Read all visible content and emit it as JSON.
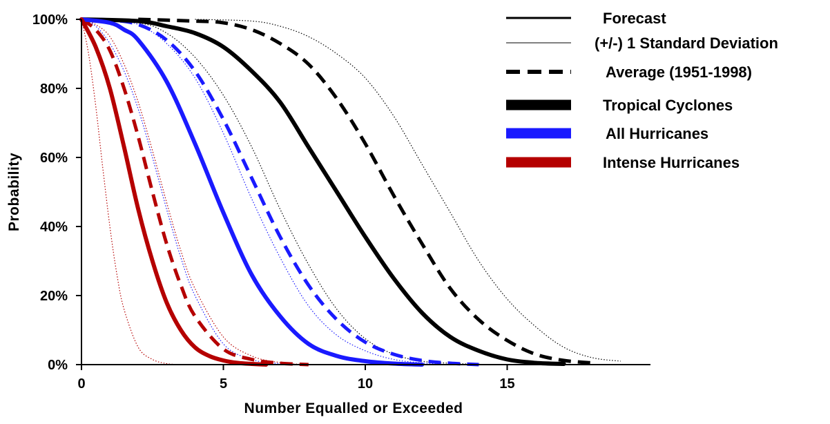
{
  "chart_data": {
    "type": "line",
    "xlabel": "Number Equalled or Exceeded",
    "ylabel": "Probability",
    "xlim": [
      0,
      20
    ],
    "ylim": [
      0,
      100
    ],
    "x_ticks": [
      "0",
      "5",
      "10",
      "15"
    ],
    "y_ticks": [
      "0%",
      "20%",
      "40%",
      "60%",
      "80%",
      "100%"
    ],
    "grid": false,
    "legend_position": "top-right",
    "legend": [
      {
        "label": "Forecast",
        "style": "solid-thin"
      },
      {
        "label": "(+/-) 1 Standard Deviation",
        "style": "hairline"
      },
      {
        "label": "Average (1951-1998)",
        "style": "dashed"
      },
      {
        "label": "Tropical Cyclones",
        "style": "thick",
        "color": "#000000"
      },
      {
        "label": "All Hurricanes",
        "style": "thick",
        "color": "#1a1aff"
      },
      {
        "label": "Intense Hurricanes",
        "style": "thick",
        "color": "#b50000"
      }
    ],
    "colors": {
      "tropical_cyclones": "#000000",
      "all_hurricanes": "#1a1aff",
      "intense_hurricanes": "#b50000"
    },
    "series": [
      {
        "group": "Tropical Cyclones",
        "kind": "Forecast",
        "color": "#000000",
        "style": "solid",
        "x": [
          0,
          2,
          3,
          4,
          5,
          6,
          7,
          8,
          9,
          10,
          11,
          12,
          13,
          14,
          15,
          16,
          17
        ],
        "y": [
          100,
          99.5,
          98,
          96,
          92,
          85,
          76,
          63,
          50,
          37,
          25,
          15,
          8,
          4,
          1.5,
          0.5,
          0.2
        ]
      },
      {
        "group": "Tropical Cyclones",
        "kind": "Average (1951-1998)",
        "color": "#000000",
        "style": "dashed",
        "x": [
          2,
          4,
          5,
          6,
          7,
          8,
          9,
          10,
          11,
          12,
          13,
          14,
          15,
          16,
          17,
          18
        ],
        "y": [
          100,
          99.5,
          99,
          97,
          93,
          87,
          77,
          64,
          49,
          35,
          22,
          13,
          7,
          3,
          1.2,
          0.5
        ]
      },
      {
        "group": "Tropical Cyclones",
        "kind": "+1 Standard Deviation",
        "color": "#000000",
        "style": "dotted",
        "x": [
          4,
          6,
          7,
          8,
          9,
          10,
          11,
          12,
          13,
          14,
          15,
          16,
          17,
          18,
          19
        ],
        "y": [
          100,
          99.5,
          98,
          95,
          90,
          83,
          72,
          58,
          44,
          30,
          19,
          11,
          5,
          2,
          1
        ]
      },
      {
        "group": "Tropical Cyclones",
        "kind": "-1 Standard Deviation",
        "color": "#000000",
        "style": "dotted",
        "x": [
          0,
          2,
          3,
          4,
          5,
          6,
          7,
          8,
          9,
          10,
          11,
          12,
          13,
          14,
          15
        ],
        "y": [
          100,
          99,
          96,
          89,
          78,
          63,
          45,
          29,
          16,
          7.5,
          3,
          1,
          0.4,
          0.1,
          0
        ]
      },
      {
        "group": "All Hurricanes",
        "kind": "Forecast",
        "color": "#1a1aff",
        "style": "solid",
        "x": [
          0,
          1,
          1.5,
          2,
          3,
          4,
          5,
          6,
          7,
          8,
          9,
          10,
          11,
          12
        ],
        "y": [
          100,
          99,
          97,
          94,
          82,
          64,
          44,
          26,
          14,
          6,
          2.5,
          1,
          0.3,
          0
        ]
      },
      {
        "group": "All Hurricanes",
        "kind": "Average (1951-1998)",
        "color": "#1a1aff",
        "style": "dashed",
        "x": [
          0,
          1,
          2,
          3,
          4,
          5,
          6,
          7,
          8,
          9,
          10,
          11,
          12,
          13,
          14
        ],
        "y": [
          100,
          99.8,
          98.5,
          94,
          85,
          71,
          54,
          37,
          23,
          13,
          6.5,
          3,
          1.2,
          0.4,
          0
        ]
      },
      {
        "group": "All Hurricanes",
        "kind": "+1 Standard Deviation",
        "color": "#1a1aff",
        "style": "dotted",
        "x": [
          0,
          1,
          2,
          3,
          4,
          5,
          6,
          7,
          8,
          9,
          10,
          11,
          12,
          13
        ],
        "y": [
          100,
          99.8,
          98.5,
          93,
          83,
          67,
          48,
          31,
          17,
          8.5,
          4,
          1.5,
          0.5,
          0
        ]
      },
      {
        "group": "All Hurricanes",
        "kind": "-1 Standard Deviation",
        "color": "#1a1aff",
        "style": "dotted",
        "x": [
          0,
          0.5,
          1,
          1.5,
          2,
          2.5,
          3,
          3.5,
          4,
          5,
          6,
          7,
          8
        ],
        "y": [
          100,
          98,
          93,
          85,
          74,
          60,
          45,
          31,
          20,
          6,
          1.5,
          0.3,
          0
        ]
      },
      {
        "group": "Intense Hurricanes",
        "kind": "Forecast",
        "color": "#b50000",
        "style": "solid",
        "x": [
          0,
          0.5,
          1,
          1.5,
          2,
          2.5,
          3,
          3.5,
          4,
          4.5,
          5,
          5.5,
          6,
          6.5
        ],
        "y": [
          100,
          92,
          80,
          63,
          45,
          30,
          18,
          10,
          5,
          2.5,
          1.2,
          0.5,
          0.2,
          0
        ]
      },
      {
        "group": "Intense Hurricanes",
        "kind": "Average (1951-1998)",
        "color": "#b50000",
        "style": "dashed",
        "x": [
          0,
          0.5,
          1,
          1.5,
          2,
          2.5,
          3,
          3.5,
          4,
          5,
          6,
          7,
          8
        ],
        "y": [
          100,
          97,
          91,
          80,
          66,
          50,
          35,
          23,
          14,
          4.5,
          1.5,
          0.4,
          0
        ]
      },
      {
        "group": "Intense Hurricanes",
        "kind": "+1 Standard Deviation",
        "color": "#b50000",
        "style": "dotted",
        "x": [
          0,
          0.5,
          1,
          1.5,
          2,
          2.5,
          3,
          3.5,
          4,
          5,
          6,
          7,
          8
        ],
        "y": [
          100,
          98.5,
          95,
          87,
          76,
          62,
          47,
          33,
          22,
          8,
          2.5,
          0.6,
          0
        ]
      },
      {
        "group": "Intense Hurricanes",
        "kind": "-1 Standard Deviation",
        "color": "#b50000",
        "style": "dotted",
        "x": [
          0,
          0.25,
          0.5,
          0.75,
          1,
          1.25,
          1.5,
          2,
          2.5,
          3,
          3.5
        ],
        "y": [
          100,
          90,
          75,
          57,
          40,
          26,
          16,
          5,
          1.5,
          0.3,
          0
        ]
      }
    ]
  }
}
